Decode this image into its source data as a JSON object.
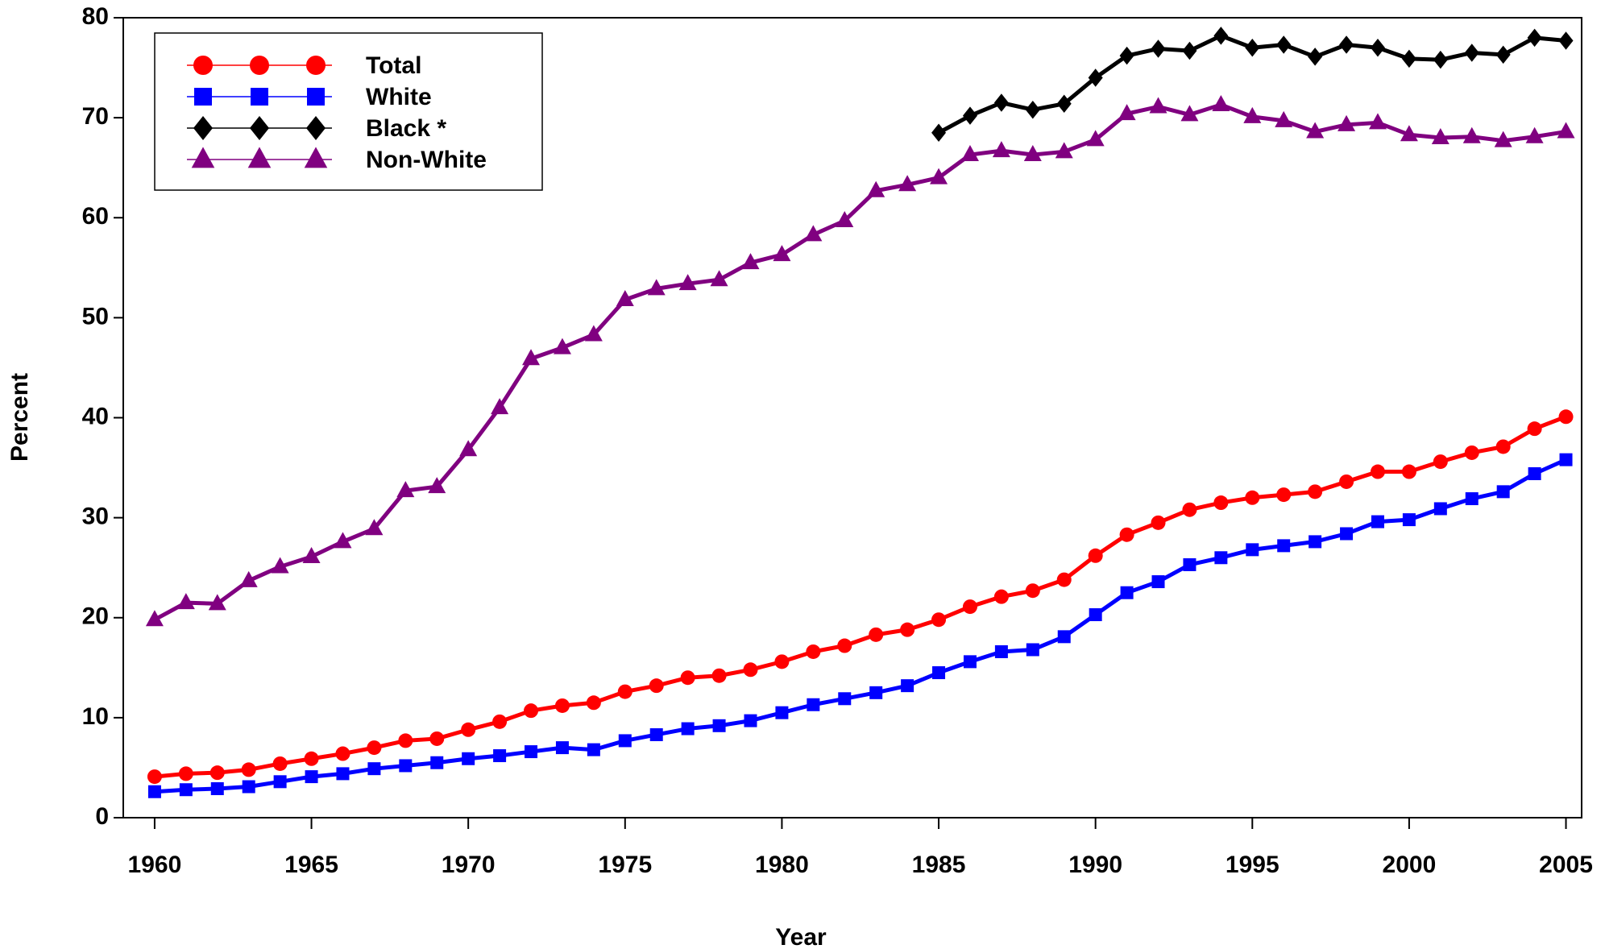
{
  "chart_data": {
    "type": "line",
    "xlabel": "Year",
    "ylabel": "Percent",
    "x": [
      1960,
      1961,
      1962,
      1963,
      1964,
      1965,
      1966,
      1967,
      1968,
      1969,
      1970,
      1971,
      1972,
      1973,
      1974,
      1975,
      1976,
      1977,
      1978,
      1979,
      1980,
      1981,
      1982,
      1983,
      1984,
      1985,
      1986,
      1987,
      1988,
      1989,
      1990,
      1991,
      1992,
      1993,
      1994,
      1995,
      1996,
      1997,
      1998,
      1999,
      2000,
      2001,
      2002,
      2003,
      2004,
      2005
    ],
    "series": [
      {
        "name": "Total",
        "color": "#ff0000",
        "marker": "circle",
        "values": [
          4.1,
          4.4,
          4.5,
          4.8,
          5.4,
          5.9,
          6.4,
          7.0,
          7.7,
          7.9,
          8.8,
          9.6,
          10.7,
          11.2,
          11.5,
          12.6,
          13.2,
          14.0,
          14.2,
          14.8,
          15.6,
          16.6,
          17.2,
          18.3,
          18.8,
          19.8,
          21.1,
          22.1,
          22.7,
          23.8,
          26.2,
          28.3,
          29.5,
          30.8,
          31.5,
          32.0,
          32.3,
          32.6,
          33.6,
          34.6,
          34.6,
          35.6,
          36.5,
          37.1,
          38.9,
          40.1
        ]
      },
      {
        "name": "White",
        "color": "#0000ff",
        "marker": "square",
        "values": [
          2.6,
          2.8,
          2.9,
          3.1,
          3.6,
          4.1,
          4.4,
          4.9,
          5.2,
          5.5,
          5.9,
          6.2,
          6.6,
          7.0,
          6.8,
          7.7,
          8.3,
          8.9,
          9.2,
          9.7,
          10.5,
          11.3,
          11.9,
          12.5,
          13.2,
          14.5,
          15.6,
          16.6,
          16.8,
          18.1,
          20.3,
          22.5,
          23.6,
          25.3,
          26.0,
          26.8,
          27.2,
          27.6,
          28.4,
          29.6,
          29.8,
          30.9,
          31.9,
          32.6,
          34.4,
          35.8
        ]
      },
      {
        "name": "Black *",
        "color": "#000000",
        "marker": "diamond",
        "values": [
          null,
          null,
          null,
          null,
          null,
          null,
          null,
          null,
          null,
          null,
          null,
          null,
          null,
          null,
          null,
          null,
          null,
          null,
          null,
          null,
          null,
          null,
          null,
          null,
          null,
          68.5,
          70.2,
          71.5,
          70.8,
          71.4,
          74.0,
          76.2,
          76.9,
          76.7,
          78.2,
          77.0,
          77.3,
          76.1,
          77.3,
          77.0,
          75.9,
          75.8,
          76.5,
          76.3,
          78.0,
          77.7
        ]
      },
      {
        "name": "Non-White",
        "color": "#800080",
        "marker": "triangle",
        "values": [
          19.8,
          21.5,
          21.4,
          23.7,
          25.1,
          26.1,
          27.6,
          28.9,
          32.7,
          33.1,
          36.8,
          41.0,
          45.9,
          47.0,
          48.3,
          51.8,
          52.9,
          53.4,
          53.8,
          55.5,
          56.3,
          58.3,
          59.7,
          62.7,
          63.3,
          64.0,
          66.3,
          66.7,
          66.3,
          66.6,
          67.8,
          70.4,
          71.1,
          70.3,
          71.3,
          70.1,
          69.7,
          68.6,
          69.3,
          69.5,
          68.3,
          68.0,
          68.1,
          67.7,
          68.1,
          68.6
        ]
      }
    ],
    "xlim": [
      1959,
      2005.5
    ],
    "xticks": [
      1960,
      1965,
      1970,
      1975,
      1980,
      1985,
      1990,
      1995,
      2000,
      2005
    ],
    "ylim": [
      0,
      80
    ],
    "yticks": [
      0,
      10,
      20,
      30,
      40,
      50,
      60,
      70,
      80
    ],
    "legend": "upper left",
    "grid": false
  }
}
